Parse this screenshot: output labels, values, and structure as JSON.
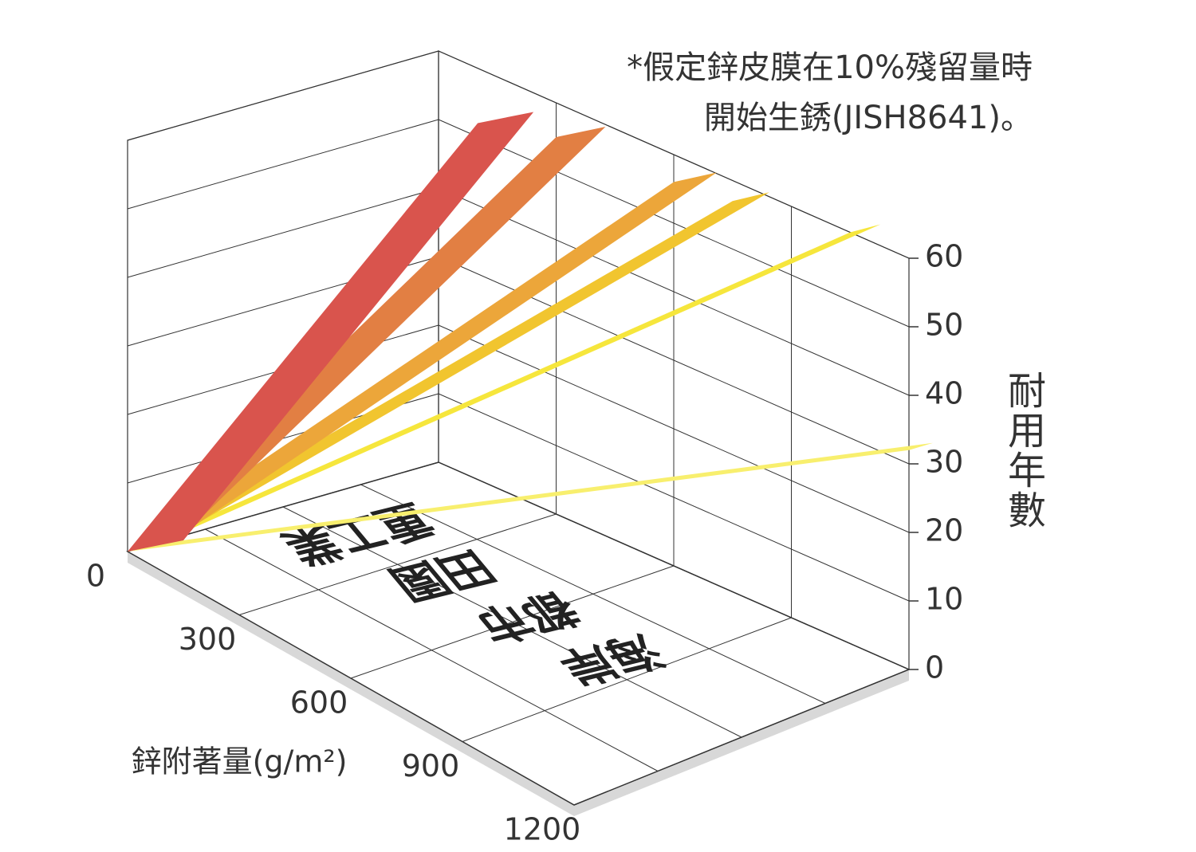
{
  "chart_data": {
    "type": "ribbon3d",
    "note": [
      "*假定鋅皮膜在10%殘留量時",
      "開始生銹(JISH8641)。"
    ],
    "x_label": "鋅附著量(g/m²)",
    "y_label": "耐用年數",
    "xlim": [
      0,
      1200
    ],
    "xticks": [
      0,
      300,
      600,
      900,
      1200
    ],
    "ylim": [
      0,
      60
    ],
    "yticks": [
      0,
      10,
      20,
      30,
      40,
      50,
      60
    ],
    "grid": true,
    "floor_labels": [
      "重工業",
      "田園",
      "都市",
      "海岸"
    ],
    "series": [
      {
        "color": "#d9544d",
        "x": [
          0,
          100
        ],
        "values": [
          0,
          52
        ]
      },
      {
        "color": "#e27f43",
        "x": [
          0,
          300
        ],
        "values": [
          0,
          55
        ]
      },
      {
        "color": "#eca63a",
        "x": [
          0,
          600
        ],
        "values": [
          0,
          56
        ]
      },
      {
        "color": "#f1c52f",
        "x": [
          0,
          750
        ],
        "values": [
          0,
          57
        ]
      },
      {
        "color": "#f6e63c",
        "x": [
          0,
          1050
        ],
        "values": [
          0,
          60
        ]
      },
      {
        "color": "#f8ef6e",
        "x": [
          0,
          1200
        ],
        "values": [
          0,
          32
        ]
      }
    ]
  }
}
